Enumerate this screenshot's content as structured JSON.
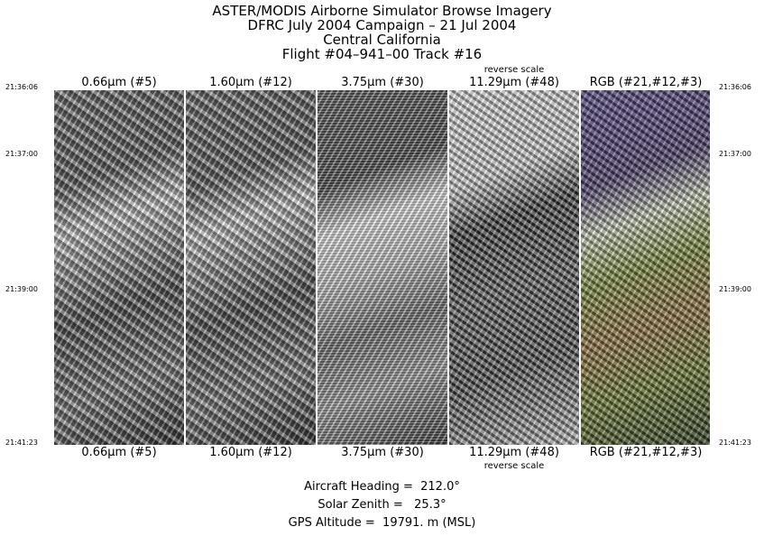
{
  "title": {
    "lines": [
      "ASTER/MODIS Airborne Simulator Browse Imagery",
      "DFRC July 2004 Campaign – 21 Jul 2004",
      "Central California",
      "Flight #04–941–00 Track #16"
    ]
  },
  "panels": [
    {
      "label": "0.66μm (#5)"
    },
    {
      "label": "1.60μm (#12)"
    },
    {
      "label": "3.75μm (#30)"
    },
    {
      "label": "11.29μm (#48)",
      "note": "reverse scale"
    },
    {
      "label": "RGB (#21,#12,#3)"
    }
  ],
  "times": [
    "21:36:06",
    "21:37:00",
    "21:39:00",
    "21:41:23"
  ],
  "footer": {
    "heading": "Aircraft Heading =  212.0°",
    "zenith": "Solar Zenith =   25.3°",
    "altitude": "GPS Altitude =  19791. m (MSL)"
  }
}
